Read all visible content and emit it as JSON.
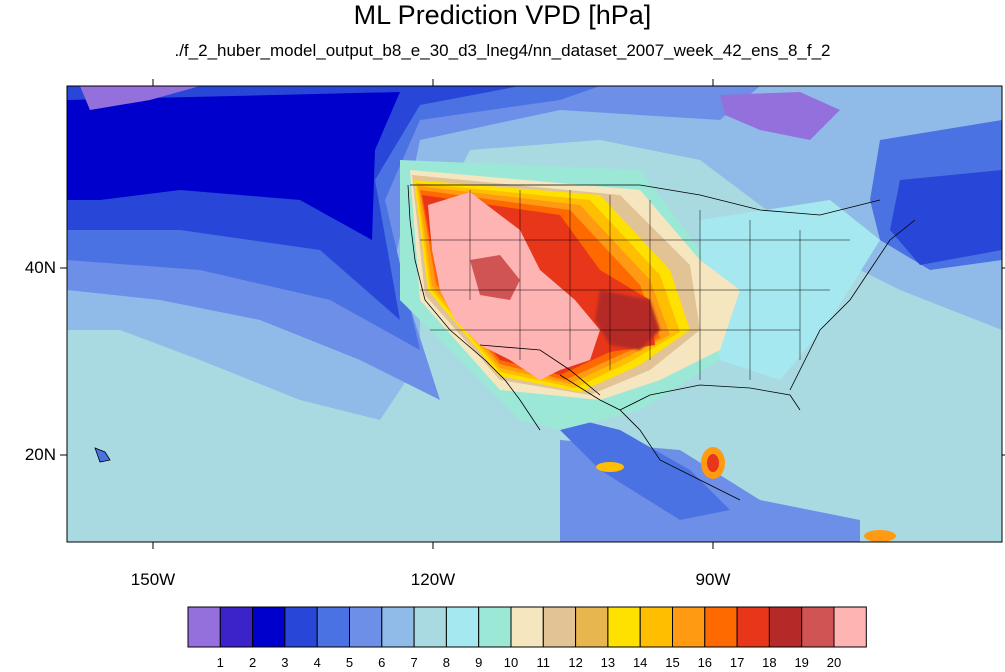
{
  "title": "ML Prediction VPD [hPa]",
  "subtitle": "./f_2_huber_model_output_b8_e_30_d3_lneg4/nn_dataset_2007_week_42_ens_8_f_2",
  "axes": {
    "lat_labels": [
      "40N",
      "20N"
    ],
    "lon_labels": [
      "150W",
      "120W",
      "90W"
    ]
  },
  "colorbar": {
    "labels": [
      "1",
      "2",
      "3",
      "4",
      "5",
      "6",
      "7",
      "8",
      "9",
      "10",
      "11",
      "12",
      "13",
      "14",
      "15",
      "16",
      "17",
      "18",
      "19",
      "20"
    ],
    "colors": [
      "#9370db",
      "#3b22c9",
      "#0000cd",
      "#2847d8",
      "#4a72e2",
      "#6e8fe8",
      "#90bbe8",
      "#a9dae2",
      "#a6e8f0",
      "#9ce8d6",
      "#f5e6c0",
      "#e2c396",
      "#e8b64f",
      "#ffe100",
      "#ffbf00",
      "#ff9a12",
      "#ff6a00",
      "#e8361a",
      "#b52a28",
      "#d05454",
      "#ffb4b4"
    ]
  },
  "map_data": {
    "variable": "VPD",
    "units": "hPa",
    "lon_range": [
      -160,
      -60
    ],
    "lat_range": [
      10,
      59
    ],
    "gridlines": false,
    "coastlines": true,
    "borders": "US states, Canada, Mexico"
  }
}
